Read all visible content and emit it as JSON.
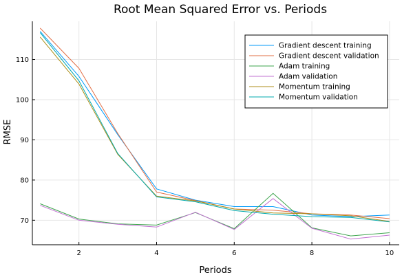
{
  "chart_data": {
    "type": "line",
    "title": "Root Mean Squared Error vs. Periods",
    "xlabel": "Periods",
    "ylabel": "RMSE",
    "xlim": [
      0.8,
      10.25
    ],
    "ylim": [
      63.9,
      119.5
    ],
    "xticks": [
      2,
      4,
      6,
      8,
      10
    ],
    "yticks": [
      70,
      80,
      90,
      100,
      110
    ],
    "grid": true,
    "legend_position": "top-right",
    "x": [
      1,
      2,
      3,
      4,
      5,
      6,
      7,
      8,
      9,
      10
    ],
    "series": [
      {
        "name": "Gradient descent training",
        "color": "#009af9",
        "values": [
          117.0,
          105.8,
          91.3,
          77.8,
          75.0,
          73.4,
          73.4,
          71.3,
          70.9,
          71.3
        ]
      },
      {
        "name": "Gradient descent validation",
        "color": "#e26f46",
        "values": [
          117.8,
          107.8,
          91.6,
          77.0,
          74.9,
          72.8,
          72.5,
          71.6,
          71.3,
          70.4
        ]
      },
      {
        "name": "Adam training",
        "color": "#3da44d",
        "values": [
          74.1,
          70.3,
          69.1,
          68.8,
          71.9,
          67.9,
          76.7,
          68.1,
          66.1,
          66.9
        ]
      },
      {
        "name": "Adam validation",
        "color": "#c271d2",
        "values": [
          73.7,
          70.0,
          69.0,
          68.3,
          72.0,
          67.7,
          75.4,
          68.0,
          65.3,
          66.3
        ]
      },
      {
        "name": "Momentum training",
        "color": "#ac8e18",
        "values": [
          115.6,
          103.9,
          86.4,
          76.0,
          74.8,
          72.8,
          71.8,
          71.6,
          71.1,
          69.7
        ]
      },
      {
        "name": "Momentum validation",
        "color": "#00a9ad",
        "values": [
          116.7,
          104.7,
          86.6,
          75.8,
          74.6,
          72.4,
          71.5,
          70.9,
          70.7,
          69.6
        ]
      }
    ]
  }
}
